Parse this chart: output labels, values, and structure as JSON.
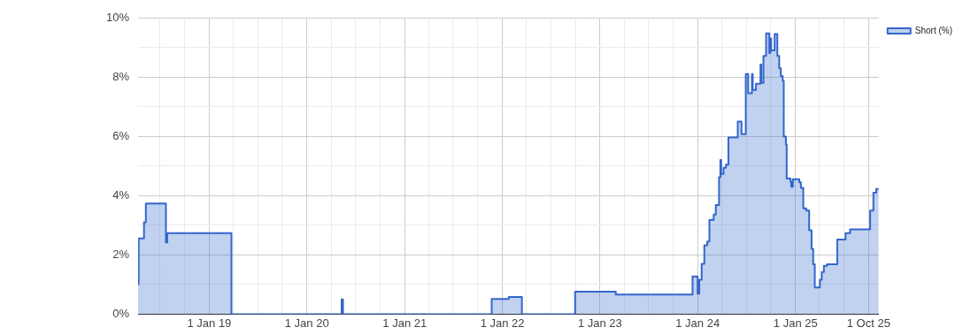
{
  "chart_data": {
    "type": "step",
    "x": [
      "2018-04-10",
      "2018-04-12",
      "2018-05-02",
      "2018-05-09",
      "2018-07-23",
      "2018-07-28",
      "2019-03-25",
      "2020-05-10",
      "2020-05-15",
      "2021-11-22",
      "2022-01-25",
      "2022-03-15",
      "2022-09-30",
      "2023-03-01",
      "2023-12-13",
      "2024-01-01",
      "2024-01-07",
      "2024-01-16",
      "2024-01-26",
      "2024-02-06",
      "2024-02-14",
      "2024-03-01",
      "2024-03-09",
      "2024-03-21",
      "2024-03-26",
      "2024-03-29",
      "2024-04-07",
      "2024-04-16",
      "2024-04-25",
      "2024-05-30",
      "2024-06-13",
      "2024-06-29",
      "2024-07-08",
      "2024-07-22",
      "2024-07-25",
      "2024-08-06",
      "2024-08-23",
      "2024-08-26",
      "2024-09-03",
      "2024-09-13",
      "2024-09-25",
      "2024-09-29",
      "2024-10-02",
      "2024-10-15",
      "2024-10-25",
      "2024-11-01",
      "2024-11-07",
      "2024-11-14",
      "2024-11-18",
      "2024-11-26",
      "2024-11-29",
      "2024-12-13",
      "2024-12-16",
      "2024-12-22",
      "2025-01-15",
      "2025-01-21",
      "2025-01-30",
      "2025-02-10",
      "2025-02-21",
      "2025-03-02",
      "2025-03-08",
      "2025-03-14",
      "2025-04-02",
      "2025-04-09",
      "2025-04-17",
      "2025-04-29",
      "2025-06-06",
      "2025-07-07",
      "2025-07-24",
      "2025-10-07",
      "2025-10-19",
      "2025-10-30",
      "2025-11-08"
    ],
    "series": [
      {
        "name": "Short (%)",
        "color": "#3366cc",
        "values": [
          1.0,
          2.55,
          3.1,
          3.73,
          2.42,
          2.73,
          0,
          0.5,
          0,
          0.51,
          0.58,
          0,
          0.76,
          0.66,
          1.27,
          0.69,
          1.16,
          1.7,
          2.32,
          2.45,
          3.18,
          3.36,
          3.68,
          4.62,
          5.2,
          4.73,
          4.94,
          5.04,
          5.96,
          6.5,
          6.07,
          8.1,
          7.45,
          8.1,
          7.56,
          7.77,
          8.42,
          7.8,
          8.71,
          9.47,
          8.81,
          9.3,
          8.9,
          9.45,
          8.71,
          8.29,
          8.03,
          7.87,
          5.99,
          5.72,
          4.57,
          4.47,
          4.3,
          4.55,
          4.45,
          4.26,
          3.57,
          3.49,
          2.83,
          2.2,
          1.68,
          0.9,
          1.16,
          1.42,
          1.63,
          1.68,
          2.52,
          2.73,
          2.86,
          3.49,
          4.1,
          4.22,
          4.22
        ]
      }
    ],
    "xlim": [
      "2018-04-10",
      "2025-11-08"
    ],
    "xticks": [
      {
        "value": "2018-07-01",
        "label": null
      },
      {
        "value": "2018-10-01",
        "label": null
      },
      {
        "value": "2019-01-01",
        "label": "1 Jan 19"
      },
      {
        "value": "2019-04-01",
        "label": null
      },
      {
        "value": "2019-07-01",
        "label": null
      },
      {
        "value": "2019-10-01",
        "label": null
      },
      {
        "value": "2020-01-01",
        "label": "1 Jan 20"
      },
      {
        "value": "2020-04-01",
        "label": null
      },
      {
        "value": "2020-07-01",
        "label": null
      },
      {
        "value": "2020-10-01",
        "label": null
      },
      {
        "value": "2021-01-01",
        "label": "1 Jan 21"
      },
      {
        "value": "2021-04-01",
        "label": null
      },
      {
        "value": "2021-07-01",
        "label": null
      },
      {
        "value": "2021-10-01",
        "label": null
      },
      {
        "value": "2022-01-01",
        "label": "1 Jan 22"
      },
      {
        "value": "2022-04-01",
        "label": null
      },
      {
        "value": "2022-07-01",
        "label": null
      },
      {
        "value": "2022-10-01",
        "label": null
      },
      {
        "value": "2023-01-01",
        "label": "1 Jan 23"
      },
      {
        "value": "2023-04-01",
        "label": null
      },
      {
        "value": "2023-07-01",
        "label": null
      },
      {
        "value": "2023-10-01",
        "label": null
      },
      {
        "value": "2024-01-01",
        "label": "1 Jan 24"
      },
      {
        "value": "2024-04-01",
        "label": null
      },
      {
        "value": "2024-07-01",
        "label": null
      },
      {
        "value": "2024-10-01",
        "label": null
      },
      {
        "value": "2025-01-01",
        "label": "1 Jan 25"
      },
      {
        "value": "2025-04-01",
        "label": null
      },
      {
        "value": "2025-07-01",
        "label": null
      },
      {
        "value": "2025-10-01",
        "label": "1 Oct 25"
      }
    ],
    "ylim": [
      0,
      10
    ],
    "yticks": [
      {
        "value": 0,
        "label": "0%"
      },
      {
        "value": 1,
        "label": null
      },
      {
        "value": 2,
        "label": "2%"
      },
      {
        "value": 3,
        "label": null
      },
      {
        "value": 4,
        "label": "4%"
      },
      {
        "value": 5,
        "label": null
      },
      {
        "value": 6,
        "label": "6%"
      },
      {
        "value": 7,
        "label": null
      },
      {
        "value": 8,
        "label": "8%"
      },
      {
        "value": 9,
        "label": null
      },
      {
        "value": 10,
        "label": "10%"
      }
    ],
    "grid": true,
    "legend": "top right"
  }
}
